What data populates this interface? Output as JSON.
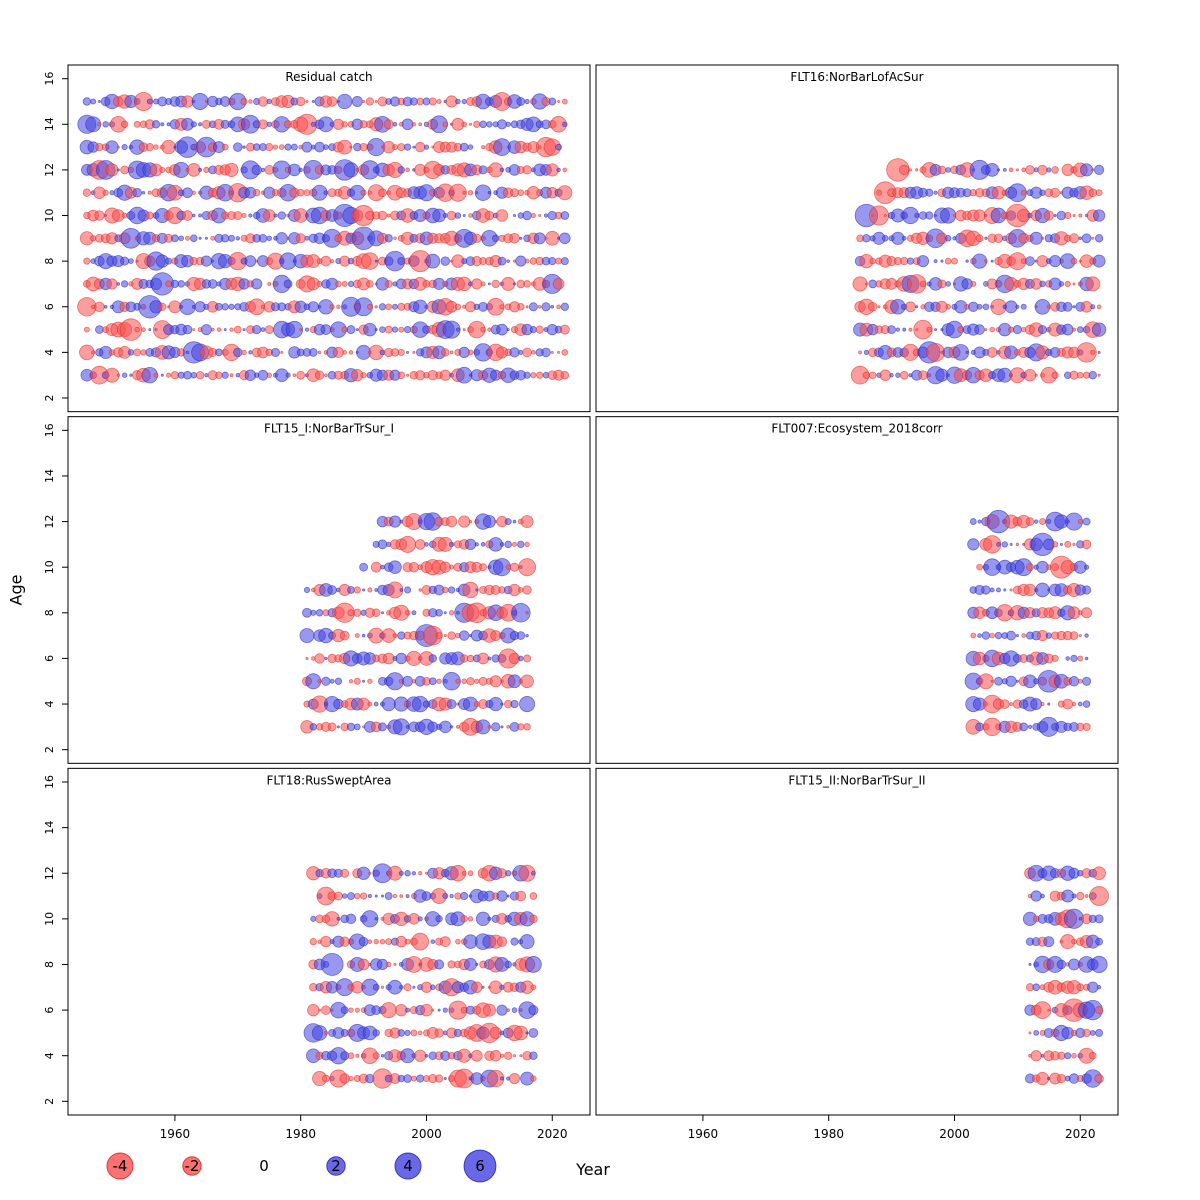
{
  "chart_data": {
    "type": "bubble",
    "description": "Lattice of standardized-residual bubble plots by Age (y) and Year (x); red bubbles = negative residuals, blue bubbles = positive residuals; bubble area scales with |residual|.",
    "xlabel": "Year",
    "ylabel": "Age",
    "axes": {
      "x_ticks": [
        1960,
        1980,
        2000,
        2020
      ],
      "y_ticks": [
        2,
        4,
        6,
        8,
        10,
        12,
        14,
        16
      ],
      "x_domain": [
        1943,
        2026
      ],
      "y_domain": [
        1.4,
        16.6
      ]
    },
    "legend": {
      "values": [
        -4,
        -2,
        0,
        2,
        4,
        6
      ]
    },
    "panels": [
      {
        "title": "Residual catch",
        "grid": [
          0,
          0
        ],
        "ages": [
          3,
          15
        ],
        "years": [
          1946,
          2022
        ],
        "seed": 101,
        "missing_prob": 0.02
      },
      {
        "title": "FLT16:NorBarLofAcSur",
        "grid": [
          0,
          1
        ],
        "ages": [
          3,
          12
        ],
        "years": [
          1985,
          2023
        ],
        "seed": 202,
        "missing_prob": 0.03,
        "row_year_overrides": {
          "10": [
            1986,
            2023
          ],
          "11": [
            1988,
            2023
          ],
          "12": [
            1991,
            2023
          ]
        }
      },
      {
        "title": "FLT15_I:NorBarTrSur_I",
        "grid": [
          1,
          0
        ],
        "ages": [
          3,
          12
        ],
        "years": [
          1981,
          2016
        ],
        "seed": 303,
        "missing_prob": 0.04,
        "row_year_overrides": {
          "10": [
            1990,
            2016
          ],
          "11": [
            1992,
            2016
          ],
          "12": [
            1992,
            2016
          ]
        }
      },
      {
        "title": "FLT007:Ecosystem_2018corr",
        "grid": [
          1,
          1
        ],
        "ages": [
          3,
          12
        ],
        "years": [
          2003,
          2021
        ],
        "seed": 404,
        "missing_prob": 0.03
      },
      {
        "title": "FLT18:RusSweptArea",
        "grid": [
          2,
          0
        ],
        "ages": [
          3,
          12
        ],
        "years": [
          1982,
          2017
        ],
        "seed": 505,
        "missing_prob": 0.08
      },
      {
        "title": "FLT15_II:NorBarTrSur_II",
        "grid": [
          2,
          1
        ],
        "ages": [
          3,
          12
        ],
        "years": [
          2012,
          2023
        ],
        "seed": 606,
        "missing_prob": 0.03
      }
    ]
  },
  "style": {
    "negative_fill": "#fb4d4d",
    "negative_stroke": "#d93025",
    "positive_fill": "#4343e2",
    "positive_stroke": "#2b2bb8",
    "title_color": "#4d4d4d",
    "panel_border": "#000000"
  }
}
